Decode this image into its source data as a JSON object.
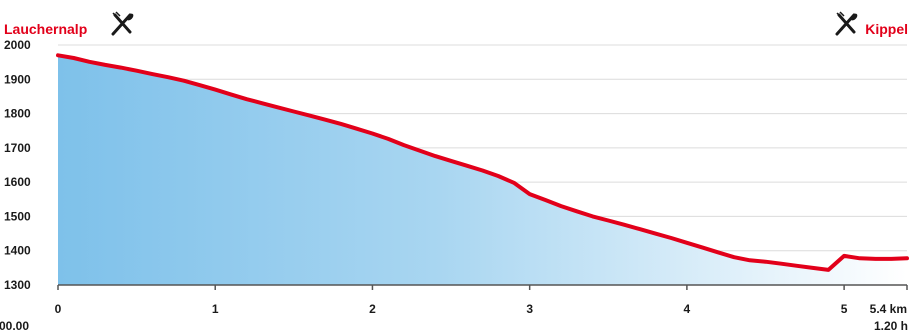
{
  "chart_data": {
    "type": "area",
    "title": "",
    "xlabel": "",
    "ylabel": "",
    "xlim": [
      0,
      5.4
    ],
    "ylim": [
      1300,
      2000
    ],
    "grid": true,
    "x_ticks": [
      "0",
      "1",
      "2",
      "3",
      "4",
      "5",
      "5.4 km"
    ],
    "x_tick_values": [
      0,
      1,
      2,
      3,
      4,
      5,
      5.4
    ],
    "time_labels": {
      "start": "00.00",
      "end": "1.20 h"
    },
    "y_ticks": [
      "1300",
      "1400",
      "1500",
      "1600",
      "1700",
      "1800",
      "1900",
      "2000"
    ],
    "y_tick_values": [
      1300,
      1400,
      1500,
      1600,
      1700,
      1800,
      1900,
      2000
    ],
    "places": {
      "start": "Lauchernalp",
      "end": "Kippel"
    },
    "place_icons": [
      "restaurant-icon",
      "restaurant-icon"
    ],
    "line_color": "#e2001a",
    "fill_color_start": "#7ec1ea",
    "fill_color_end": "#ffffff",
    "series": [
      {
        "x": [
          0,
          0.1,
          0.2,
          0.3,
          0.4,
          0.5,
          0.6,
          0.7,
          0.8,
          0.9,
          1.0,
          1.1,
          1.2,
          1.3,
          1.4,
          1.5,
          1.6,
          1.7,
          1.8,
          1.9,
          2.0,
          2.1,
          2.2,
          2.3,
          2.4,
          2.5,
          2.6,
          2.7,
          2.8,
          2.9,
          3.0,
          3.1,
          3.2,
          3.3,
          3.4,
          3.5,
          3.6,
          3.7,
          3.8,
          3.9,
          4.0,
          4.1,
          4.2,
          4.3,
          4.4,
          4.5,
          4.6,
          4.7,
          4.8,
          4.9,
          5.0,
          5.1,
          5.2,
          5.3,
          5.4
        ],
        "y": [
          1970,
          1962,
          1951,
          1942,
          1934,
          1925,
          1915,
          1906,
          1896,
          1883,
          1870,
          1856,
          1842,
          1830,
          1818,
          1806,
          1794,
          1782,
          1770,
          1756,
          1742,
          1726,
          1708,
          1692,
          1676,
          1662,
          1648,
          1634,
          1618,
          1598,
          1565,
          1548,
          1530,
          1515,
          1500,
          1488,
          1476,
          1463,
          1450,
          1437,
          1423,
          1409,
          1395,
          1381,
          1372,
          1368,
          1362,
          1356,
          1350,
          1344,
          1385,
          1378,
          1376,
          1376,
          1378
        ]
      }
    ]
  }
}
